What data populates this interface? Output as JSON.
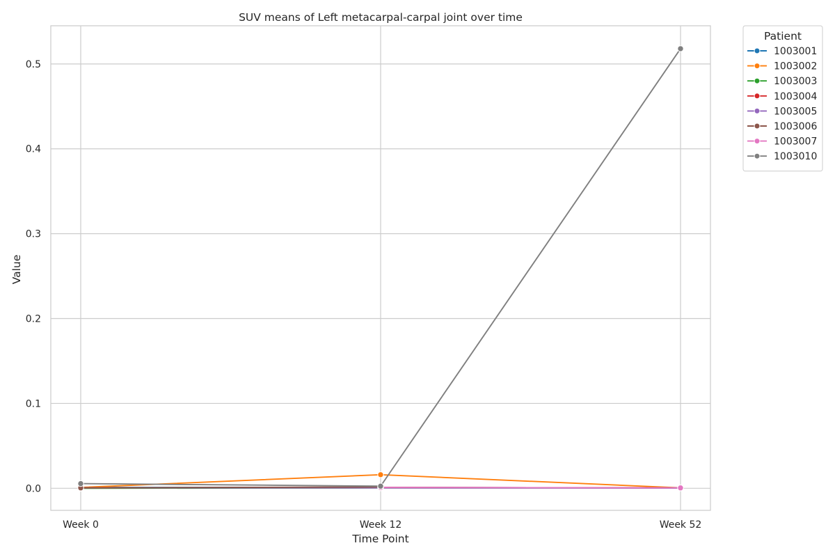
{
  "chart_data": {
    "type": "line",
    "title": "SUV means of Left metacarpal-carpal joint over time",
    "xlabel": "Time Point",
    "ylabel": "Value",
    "categories": [
      "Week 0",
      "Week 12",
      "Week 52"
    ],
    "ylim": [
      -0.026,
      0.545
    ],
    "yticks": [
      0.0,
      0.1,
      0.2,
      0.3,
      0.4,
      0.5
    ],
    "ytick_labels": [
      "0.0",
      "0.1",
      "0.2",
      "0.3",
      "0.4",
      "0.5"
    ],
    "grid": true,
    "legend": {
      "title": "Patient",
      "placement": "outside-top-right"
    },
    "series": [
      {
        "name": "1003001",
        "color": "#1f77b4",
        "values": [
          0.001,
          0.001,
          0.0005
        ]
      },
      {
        "name": "1003002",
        "color": "#ff7f0e",
        "values": [
          0.001,
          0.016,
          0.0005
        ]
      },
      {
        "name": "1003003",
        "color": "#2ca02c",
        "values": [
          0.0,
          0.0005,
          0.0005
        ]
      },
      {
        "name": "1003004",
        "color": "#d62728",
        "values": [
          0.0005,
          0.001,
          0.0005
        ]
      },
      {
        "name": "1003005",
        "color": "#9467bd",
        "values": [
          0.0005,
          0.0005,
          0.0003
        ]
      },
      {
        "name": "1003006",
        "color": "#8c564b",
        "values": [
          0.0005,
          0.0015,
          null
        ]
      },
      {
        "name": "1003007",
        "color": "#e377c2",
        "values": [
          null,
          0.001,
          0.0005
        ]
      },
      {
        "name": "1003010",
        "color": "#7f7f7f",
        "values": [
          0.0055,
          0.0025,
          0.518
        ]
      }
    ]
  }
}
